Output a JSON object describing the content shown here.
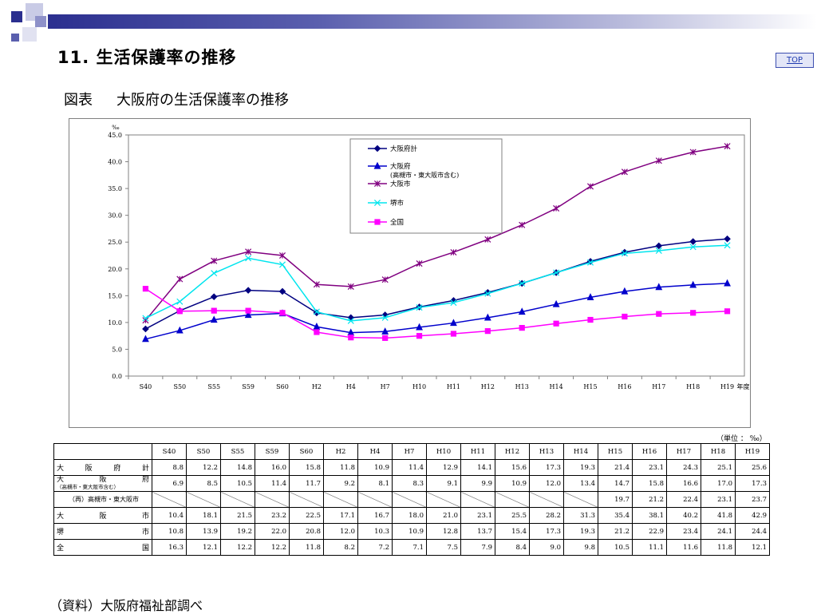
{
  "slide": {
    "title": "11. 生活保護率の推移",
    "top_link": "TOP",
    "figure_label": "図表",
    "figure_title": "大阪府の生活保護率の推移",
    "unit_note": "（単位 ： ‰）",
    "source": "（資料）大阪府福祉部調べ"
  },
  "colors": {
    "osaka_pref_total": "#000080",
    "osaka_pref_excl": "#0000cc",
    "osaka_city": "#800080",
    "sakai_city": "#00e5ee",
    "national": "#ff00ff"
  },
  "chart_data": {
    "type": "line",
    "ylabel": "‰",
    "xlabel": "年度",
    "ylim": [
      0,
      45
    ],
    "yticks": [
      "0.0",
      "5.0",
      "10.0",
      "15.0",
      "20.0",
      "25.0",
      "30.0",
      "35.0",
      "40.0",
      "45.0"
    ],
    "categories": [
      "S40",
      "S50",
      "S55",
      "S59",
      "S60",
      "H2",
      "H4",
      "H7",
      "H10",
      "H11",
      "H12",
      "H13",
      "H14",
      "H15",
      "H16",
      "H17",
      "H18",
      "H19"
    ],
    "legend_position": "top-center",
    "grid": false,
    "series": [
      {
        "name": "大阪府計",
        "marker": "diamond",
        "color": "#000080",
        "values": [
          8.8,
          12.2,
          14.8,
          16.0,
          15.8,
          11.8,
          10.9,
          11.4,
          12.9,
          14.1,
          15.6,
          17.3,
          19.3,
          21.4,
          23.1,
          24.3,
          25.1,
          25.6
        ]
      },
      {
        "name": "大阪府",
        "name_note": "(高槻市・東大阪市含む)",
        "marker": "triangle",
        "color": "#0000cc",
        "values": [
          6.9,
          8.5,
          10.5,
          11.4,
          11.7,
          9.2,
          8.1,
          8.3,
          9.1,
          9.9,
          10.9,
          12.0,
          13.4,
          14.7,
          15.8,
          16.6,
          17.0,
          17.3
        ]
      },
      {
        "name": "大阪市",
        "marker": "star",
        "color": "#800080",
        "values": [
          10.4,
          18.1,
          21.5,
          23.2,
          22.5,
          17.1,
          16.7,
          18.0,
          21.0,
          23.1,
          25.5,
          28.2,
          31.3,
          35.4,
          38.1,
          40.2,
          41.8,
          42.9
        ]
      },
      {
        "name": "堺市",
        "marker": "x",
        "color": "#00e5ee",
        "values": [
          10.8,
          13.9,
          19.2,
          22.0,
          20.8,
          12.0,
          10.3,
          10.9,
          12.8,
          13.7,
          15.4,
          17.3,
          19.3,
          21.2,
          22.9,
          23.4,
          24.1,
          24.4
        ]
      },
      {
        "name": "全国",
        "marker": "square",
        "color": "#ff00ff",
        "values": [
          16.3,
          12.1,
          12.2,
          12.2,
          11.8,
          8.2,
          7.2,
          7.1,
          7.5,
          7.9,
          8.4,
          9.0,
          9.8,
          10.5,
          11.1,
          11.6,
          11.8,
          12.1
        ]
      }
    ]
  },
  "table": {
    "headers": [
      "S40",
      "S50",
      "S55",
      "S59",
      "S60",
      "H2",
      "H4",
      "H7",
      "H10",
      "H11",
      "H12",
      "H13",
      "H14",
      "H15",
      "H16",
      "H17",
      "H18",
      "H19"
    ],
    "rows": [
      {
        "label": "大阪府計",
        "values": [
          "8.8",
          "12.2",
          "14.8",
          "16.0",
          "15.8",
          "11.8",
          "10.9",
          "11.4",
          "12.9",
          "14.1",
          "15.6",
          "17.3",
          "19.3",
          "21.4",
          "23.1",
          "24.3",
          "25.1",
          "25.6"
        ]
      },
      {
        "label": "大阪府",
        "sublabel": "（高槻市・東大阪市含む）",
        "values": [
          "6.9",
          "8.5",
          "10.5",
          "11.4",
          "11.7",
          "9.2",
          "8.1",
          "8.3",
          "9.1",
          "9.9",
          "10.9",
          "12.0",
          "13.4",
          "14.7",
          "15.8",
          "16.6",
          "17.0",
          "17.3"
        ]
      },
      {
        "label": "（再）高槻市・東大阪市",
        "values": [
          "",
          "",
          "",
          "",
          "",
          "",
          "",
          "",
          "",
          "",
          "",
          "",
          "",
          "19.7",
          "21.2",
          "22.4",
          "23.1",
          "23.7"
        ]
      },
      {
        "label": "大阪市",
        "values": [
          "10.4",
          "18.1",
          "21.5",
          "23.2",
          "22.5",
          "17.1",
          "16.7",
          "18.0",
          "21.0",
          "23.1",
          "25.5",
          "28.2",
          "31.3",
          "35.4",
          "38.1",
          "40.2",
          "41.8",
          "42.9"
        ]
      },
      {
        "label": "堺市",
        "values": [
          "10.8",
          "13.9",
          "19.2",
          "22.0",
          "20.8",
          "12.0",
          "10.3",
          "10.9",
          "12.8",
          "13.7",
          "15.4",
          "17.3",
          "19.3",
          "21.2",
          "22.9",
          "23.4",
          "24.1",
          "24.4"
        ]
      },
      {
        "label": "全国",
        "values": [
          "16.3",
          "12.1",
          "12.2",
          "12.2",
          "11.8",
          "8.2",
          "7.2",
          "7.1",
          "7.5",
          "7.9",
          "8.4",
          "9.0",
          "9.8",
          "10.5",
          "11.1",
          "11.6",
          "11.8",
          "12.1"
        ]
      }
    ]
  }
}
